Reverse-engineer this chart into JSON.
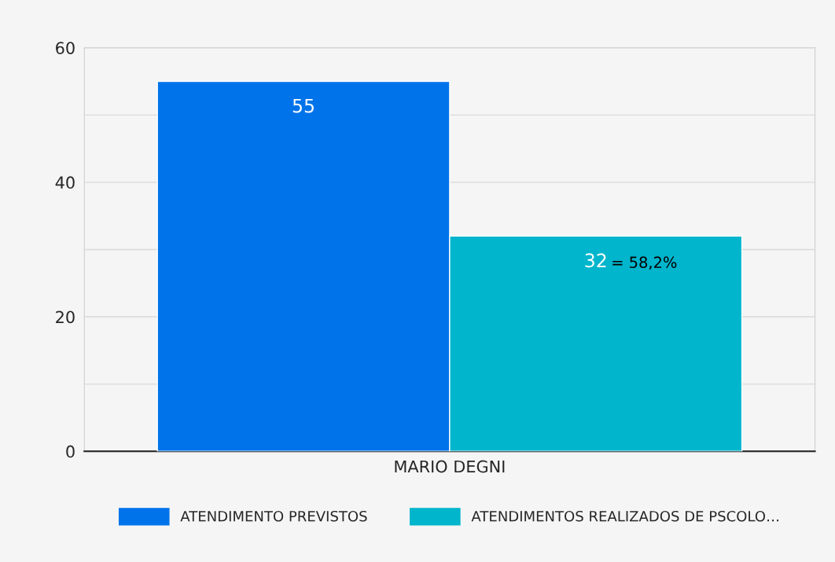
{
  "chart_data": {
    "type": "bar",
    "categories": [
      "MARIO DEGNI"
    ],
    "series": [
      {
        "name": "ATENDIMENTO PREVISTOS",
        "color": "#0073ea",
        "values": [
          55
        ]
      },
      {
        "name": "ATENDIMENTOS REALIZADOS DE PSCOLO…",
        "color": "#00b5cc",
        "values": [
          32
        ]
      }
    ],
    "ylim": [
      0,
      60
    ],
    "yticks": [
      0,
      {
        "value": 10,
        "label": null
      },
      20,
      {
        "value": 30,
        "label": null
      },
      40,
      {
        "value": 50,
        "label": null
      },
      60
    ],
    "grid": "y",
    "legend": "bottom",
    "data_labels": true,
    "annotations": [
      "= 58,2%"
    ]
  }
}
